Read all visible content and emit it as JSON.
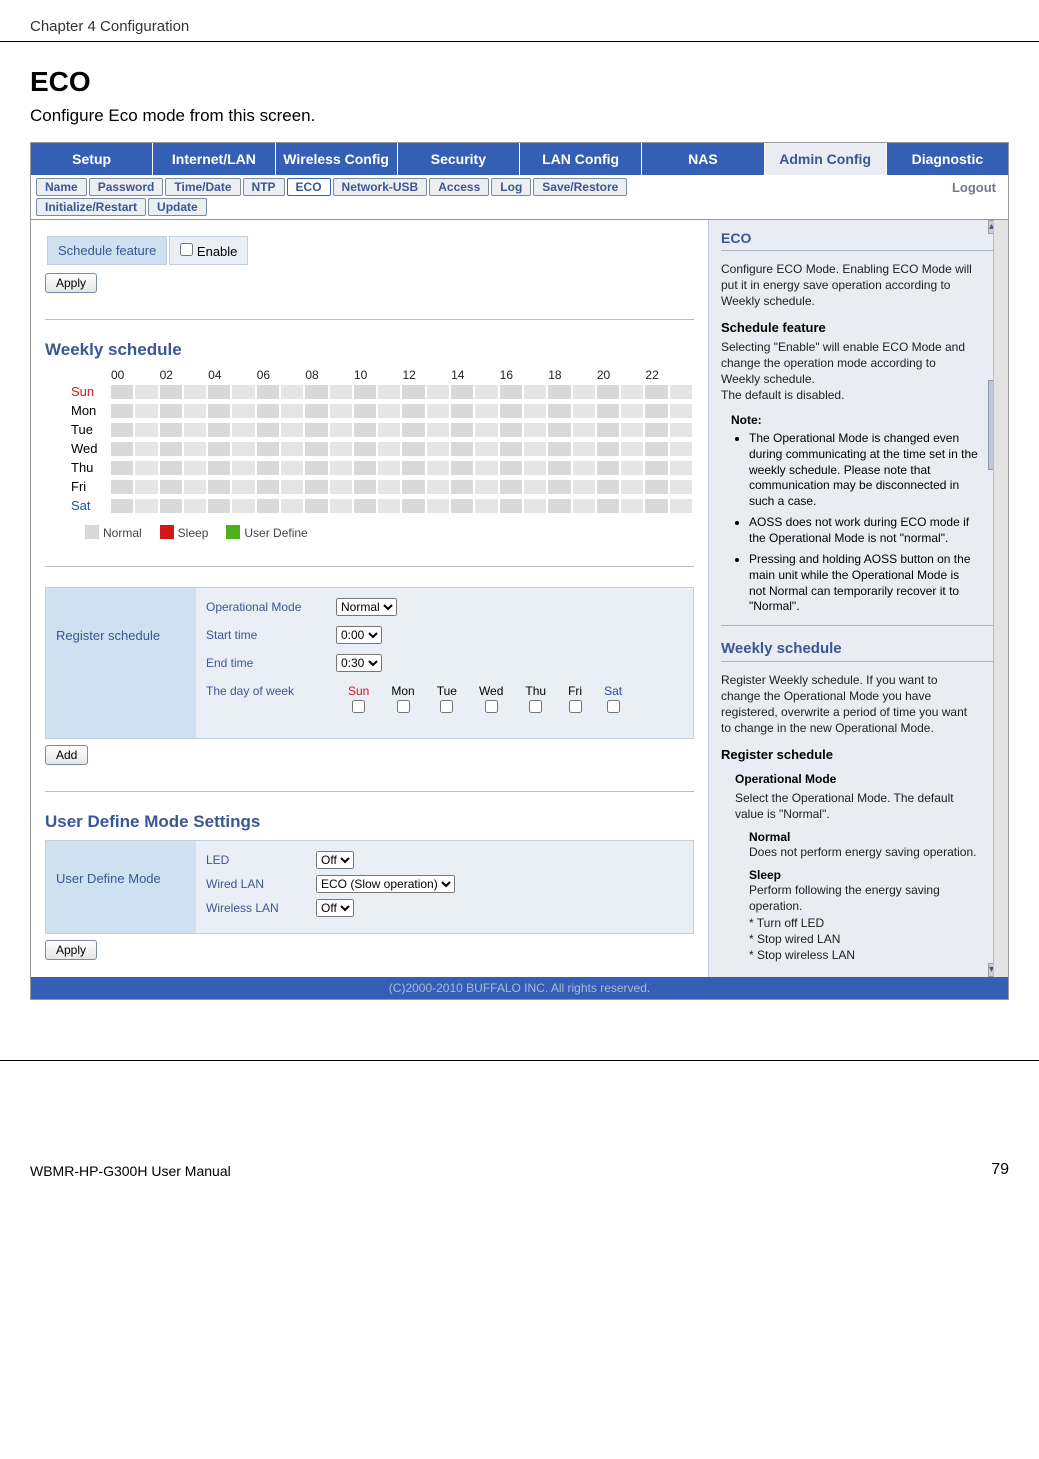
{
  "page": {
    "chapter": "Chapter 4  Configuration",
    "title": "ECO",
    "description": "Configure Eco mode from this screen.",
    "footer_manual": "WBMR-HP-G300H User Manual",
    "footer_page": "79"
  },
  "main_tabs": [
    "Setup",
    "Internet/LAN",
    "Wireless Config",
    "Security",
    "LAN Config",
    "NAS",
    "Admin Config",
    "Diagnostic"
  ],
  "sub_tabs_row1": [
    "Name",
    "Password",
    "Time/Date",
    "NTP",
    "ECO",
    "Network-USB",
    "Access",
    "Log",
    "Save/Restore"
  ],
  "sub_tabs_row2": [
    "Initialize/Restart",
    "Update"
  ],
  "active_sub_tab": "ECO",
  "logout": "Logout",
  "schedule_feature": {
    "label": "Schedule feature",
    "checkbox_label": "Enable",
    "apply": "Apply"
  },
  "weekly_schedule": {
    "title": "Weekly schedule",
    "hours": [
      "00",
      "02",
      "04",
      "06",
      "08",
      "10",
      "12",
      "14",
      "16",
      "18",
      "20",
      "22"
    ],
    "days": [
      {
        "name": "Sun",
        "color": "#d11919"
      },
      {
        "name": "Mon",
        "color": "#000"
      },
      {
        "name": "Tue",
        "color": "#000"
      },
      {
        "name": "Wed",
        "color": "#000"
      },
      {
        "name": "Thu",
        "color": "#000"
      },
      {
        "name": "Fri",
        "color": "#000"
      },
      {
        "name": "Sat",
        "color": "#1e4fb0"
      }
    ],
    "legend": [
      {
        "label": "Normal",
        "color": "#d9d9d9"
      },
      {
        "label": "Sleep",
        "color": "#d11919"
      },
      {
        "label": "User Define",
        "color": "#4caf1e"
      }
    ]
  },
  "register_schedule": {
    "label": "Register schedule",
    "fields": {
      "op_mode_label": "Operational Mode",
      "op_mode_value": "Normal",
      "start_label": "Start time",
      "start_value": "0:00",
      "end_label": "End time",
      "end_value": "0:30",
      "dow_label": "The day of week",
      "days": [
        "Sun",
        "Mon",
        "Tue",
        "Wed",
        "Thu",
        "Fri",
        "Sat"
      ]
    },
    "add": "Add"
  },
  "user_define": {
    "title": "User Define Mode Settings",
    "label": "User Define Mode",
    "led_label": "LED",
    "led_value": "Off",
    "wired_label": "Wired LAN",
    "wired_value": "ECO (Slow operation)",
    "wireless_label": "Wireless LAN",
    "wireless_value": "Off",
    "apply": "Apply"
  },
  "help": {
    "eco_title": "ECO",
    "eco_p": "Configure ECO Mode. Enabling ECO Mode will put it in energy save operation according to Weekly schedule.",
    "sf_title": "Schedule feature",
    "sf_p": "Selecting \"Enable\" will enable ECO Mode and change the operation mode according to Weekly schedule.\nThe default is disabled.",
    "note_label": "Note:",
    "notes": [
      "The Operational Mode is changed even during communicating at the time set in the weekly schedule. Please note that communication may be disconnected in such a case.",
      "AOSS does not work during ECO mode if the Operational Mode is not \"normal\".",
      "Pressing and holding AOSS button on the main unit while the Operational Mode is not Normal can temporarily recover it to \"Normal\"."
    ],
    "ws_title": "Weekly schedule",
    "ws_p": "Register Weekly schedule. If you want to change the Operational Mode you have registered, overwrite a period of time you want to change in the new Operational Mode.",
    "rs_title": "Register schedule",
    "op_title": "Operational Mode",
    "op_p": "Select the Operational Mode. The default value is \"Normal\".",
    "normal_t": "Normal",
    "normal_p": "Does not perform energy saving operation.",
    "sleep_t": "Sleep",
    "sleep_p": "Perform following the energy saving operation.\n* Turn off LED\n* Stop wired LAN\n* Stop wireless LAN"
  },
  "copyright": "(C)2000-2010 BUFFALO INC. All rights reserved."
}
